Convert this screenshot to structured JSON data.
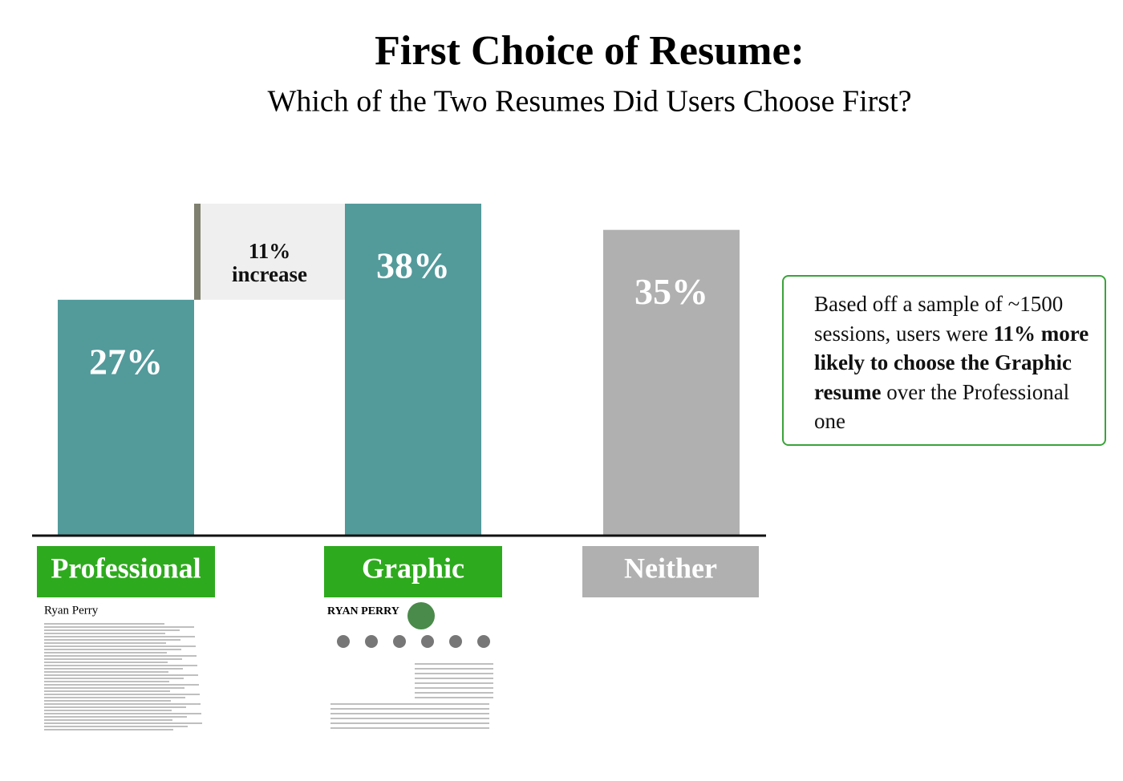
{
  "chart_data": {
    "type": "bar",
    "title": "First Choice of Resume:",
    "subtitle": "Which of the Two Resumes Did Users Choose First?",
    "categories": [
      "Professional",
      "Graphic",
      "Neither"
    ],
    "values": [
      27,
      38,
      35
    ],
    "value_labels": [
      "27%",
      "38%",
      "35%"
    ],
    "colors": [
      "#539a9b",
      "#539a9b",
      "#b0b0b0"
    ],
    "label_colors": [
      "#2eaa1e",
      "#2eaa1e",
      "#b0b0b0"
    ],
    "increase": {
      "value": 11,
      "label": "11% increase"
    },
    "ylim": [
      0,
      38
    ],
    "note": [
      {
        "text": "Based off a sample of ~1500 sessions, users were ",
        "bold": false
      },
      {
        "text": "11% more likely to choose the Graphic resume",
        "bold": true
      },
      {
        "text": " over the Professional one",
        "bold": false
      }
    ],
    "thumbnails": [
      "Ryan Perry",
      "RYAN PERRY"
    ]
  }
}
